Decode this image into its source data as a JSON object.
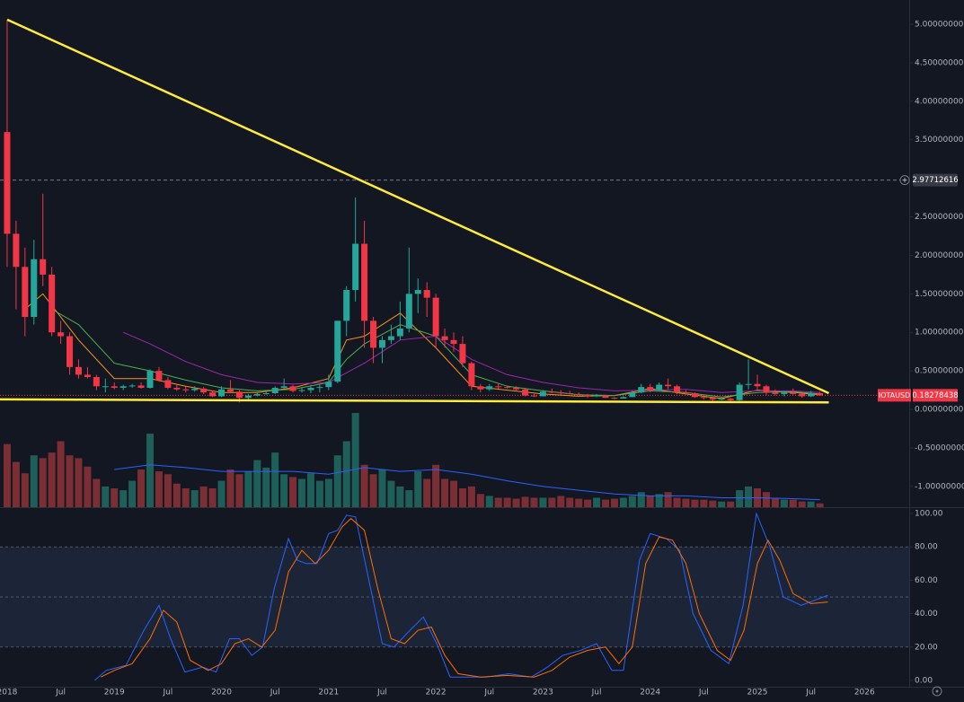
{
  "chart_data": [
    {
      "type": "candlestick",
      "xlim": [
        -0.8,
        101
      ],
      "ylim": [
        -1.27,
        5.315
      ],
      "xticks": [
        {
          "value": 0,
          "label": "2018"
        },
        {
          "value": 6,
          "label": "Jul"
        },
        {
          "value": 12,
          "label": "2019"
        },
        {
          "value": 18,
          "label": "Jul"
        },
        {
          "value": 24,
          "label": "2020"
        },
        {
          "value": 30,
          "label": "Jul"
        },
        {
          "value": 36,
          "label": "2021"
        },
        {
          "value": 42,
          "label": "Jul"
        },
        {
          "value": 48,
          "label": "2022"
        },
        {
          "value": 54,
          "label": "Jul"
        },
        {
          "value": 60,
          "label": "2023"
        },
        {
          "value": 66,
          "label": "Jul"
        },
        {
          "value": 72,
          "label": "2024"
        },
        {
          "value": 78,
          "label": "Jul"
        },
        {
          "value": 84,
          "label": "2025"
        },
        {
          "value": 90,
          "label": "Jul"
        },
        {
          "value": 96,
          "label": "2026"
        }
      ],
      "yticks": [
        {
          "value": 5,
          "label": "5.00000000"
        },
        {
          "value": 4.5,
          "label": "4.50000000"
        },
        {
          "value": 4,
          "label": "4.00000000"
        },
        {
          "value": 3.5,
          "label": "3.50000000"
        },
        {
          "value": 2.5,
          "label": "2.50000000"
        },
        {
          "value": 2,
          "label": "2.00000000"
        },
        {
          "value": 1.5,
          "label": "1.50000000"
        },
        {
          "value": 1,
          "label": "1.00000000"
        },
        {
          "value": 0.5,
          "label": "0.50000000"
        },
        {
          "value": 0,
          "label": "0.00000000"
        },
        {
          "value": -0.5,
          "label": "-0.50000000"
        },
        {
          "value": -1,
          "label": "-1.00000000"
        }
      ],
      "up_color": "#26a69a",
      "down_color": "#f23645",
      "ohlc": [
        [
          3.6,
          5.05,
          1.85,
          2.28
        ],
        [
          2.28,
          2.45,
          1.3,
          1.85
        ],
        [
          1.85,
          2.1,
          0.95,
          1.2
        ],
        [
          1.2,
          2.2,
          1.1,
          1.95
        ],
        [
          1.95,
          2.8,
          1.6,
          1.75
        ],
        [
          1.75,
          1.85,
          0.95,
          1.0
        ],
        [
          1.0,
          1.15,
          0.85,
          0.95
        ],
        [
          0.95,
          1.0,
          0.45,
          0.55
        ],
        [
          0.55,
          0.65,
          0.4,
          0.45
        ],
        [
          0.45,
          0.55,
          0.4,
          0.42
        ],
        [
          0.42,
          0.45,
          0.25,
          0.3
        ],
        [
          0.3,
          0.4,
          0.22,
          0.3
        ],
        [
          0.3,
          0.35,
          0.26,
          0.28
        ],
        [
          0.28,
          0.32,
          0.25,
          0.3
        ],
        [
          0.3,
          0.33,
          0.28,
          0.31
        ],
        [
          0.31,
          0.35,
          0.27,
          0.28
        ],
        [
          0.28,
          0.52,
          0.27,
          0.5
        ],
        [
          0.5,
          0.55,
          0.36,
          0.38
        ],
        [
          0.38,
          0.42,
          0.26,
          0.28
        ],
        [
          0.28,
          0.32,
          0.24,
          0.26
        ],
        [
          0.26,
          0.3,
          0.22,
          0.25
        ],
        [
          0.25,
          0.3,
          0.23,
          0.27
        ],
        [
          0.27,
          0.29,
          0.2,
          0.22
        ],
        [
          0.22,
          0.24,
          0.16,
          0.17
        ],
        [
          0.17,
          0.3,
          0.16,
          0.26
        ],
        [
          0.26,
          0.38,
          0.22,
          0.23
        ],
        [
          0.23,
          0.25,
          0.09,
          0.15
        ],
        [
          0.15,
          0.2,
          0.13,
          0.18
        ],
        [
          0.18,
          0.22,
          0.17,
          0.2
        ],
        [
          0.2,
          0.24,
          0.19,
          0.21
        ],
        [
          0.21,
          0.3,
          0.2,
          0.28
        ],
        [
          0.28,
          0.4,
          0.27,
          0.3
        ],
        [
          0.3,
          0.32,
          0.22,
          0.24
        ],
        [
          0.24,
          0.28,
          0.22,
          0.25
        ],
        [
          0.25,
          0.32,
          0.21,
          0.28
        ],
        [
          0.28,
          0.32,
          0.22,
          0.29
        ],
        [
          0.29,
          0.45,
          0.25,
          0.36
        ],
        [
          0.36,
          1.15,
          0.34,
          1.15
        ],
        [
          1.15,
          1.6,
          0.95,
          1.55
        ],
        [
          1.55,
          2.75,
          1.4,
          2.15
        ],
        [
          2.15,
          2.45,
          0.8,
          1.15
        ],
        [
          1.15,
          1.2,
          0.6,
          0.8
        ],
        [
          0.8,
          0.95,
          0.6,
          0.9
        ],
        [
          0.9,
          1.1,
          0.85,
          0.95
        ],
        [
          0.95,
          1.4,
          0.9,
          1.05
        ],
        [
          1.05,
          2.1,
          1.0,
          1.5
        ],
        [
          1.5,
          1.7,
          1.25,
          1.55
        ],
        [
          1.55,
          1.65,
          1.2,
          1.45
        ],
        [
          1.45,
          1.5,
          0.8,
          0.95
        ],
        [
          0.95,
          1.05,
          0.8,
          0.9
        ],
        [
          0.9,
          1.0,
          0.75,
          0.85
        ],
        [
          0.85,
          0.95,
          0.55,
          0.6
        ],
        [
          0.6,
          0.62,
          0.25,
          0.3
        ],
        [
          0.3,
          0.33,
          0.22,
          0.26
        ],
        [
          0.26,
          0.33,
          0.24,
          0.3
        ],
        [
          0.3,
          0.34,
          0.27,
          0.29
        ],
        [
          0.29,
          0.31,
          0.27,
          0.28
        ],
        [
          0.28,
          0.3,
          0.25,
          0.26
        ],
        [
          0.26,
          0.28,
          0.17,
          0.18
        ],
        [
          0.18,
          0.2,
          0.16,
          0.17
        ],
        [
          0.17,
          0.25,
          0.17,
          0.23
        ],
        [
          0.23,
          0.27,
          0.21,
          0.22
        ],
        [
          0.22,
          0.25,
          0.19,
          0.21
        ],
        [
          0.21,
          0.24,
          0.2,
          0.2
        ],
        [
          0.2,
          0.22,
          0.19,
          0.19
        ],
        [
          0.19,
          0.2,
          0.15,
          0.17
        ],
        [
          0.17,
          0.2,
          0.16,
          0.18
        ],
        [
          0.18,
          0.19,
          0.15,
          0.15
        ],
        [
          0.15,
          0.16,
          0.13,
          0.14
        ],
        [
          0.14,
          0.17,
          0.14,
          0.16
        ],
        [
          0.16,
          0.24,
          0.16,
          0.22
        ],
        [
          0.22,
          0.33,
          0.21,
          0.29
        ],
        [
          0.29,
          0.33,
          0.22,
          0.25
        ],
        [
          0.25,
          0.35,
          0.24,
          0.32
        ],
        [
          0.32,
          0.4,
          0.26,
          0.3
        ],
        [
          0.3,
          0.32,
          0.2,
          0.22
        ],
        [
          0.22,
          0.25,
          0.19,
          0.21
        ],
        [
          0.21,
          0.22,
          0.15,
          0.16
        ],
        [
          0.16,
          0.19,
          0.13,
          0.15
        ],
        [
          0.15,
          0.16,
          0.11,
          0.13
        ],
        [
          0.13,
          0.15,
          0.12,
          0.14
        ],
        [
          0.14,
          0.15,
          0.11,
          0.12
        ],
        [
          0.12,
          0.35,
          0.11,
          0.32
        ],
        [
          0.32,
          0.65,
          0.26,
          0.33
        ],
        [
          0.33,
          0.45,
          0.26,
          0.3
        ],
        [
          0.3,
          0.32,
          0.18,
          0.22
        ],
        [
          0.22,
          0.26,
          0.18,
          0.2
        ],
        [
          0.2,
          0.24,
          0.17,
          0.22
        ],
        [
          0.22,
          0.27,
          0.19,
          0.2
        ],
        [
          0.2,
          0.21,
          0.15,
          0.17
        ],
        [
          0.17,
          0.24,
          0.16,
          0.21
        ],
        [
          0.21,
          0.23,
          0.18,
          0.18
        ]
      ],
      "moving_averages": [
        {
          "color": "#f7931a",
          "x": [
            2,
            4,
            8,
            12,
            16,
            20,
            24,
            28,
            32,
            36,
            38,
            40,
            44,
            48,
            52,
            56,
            60,
            64,
            68,
            72,
            76,
            80,
            84,
            88,
            91
          ],
          "values": [
            1.3,
            1.5,
            0.9,
            0.4,
            0.4,
            0.3,
            0.22,
            0.22,
            0.28,
            0.4,
            0.9,
            0.95,
            1.25,
            0.8,
            0.3,
            0.25,
            0.2,
            0.17,
            0.18,
            0.27,
            0.2,
            0.14,
            0.25,
            0.22,
            0.19
          ]
        },
        {
          "color": "#4caf50",
          "x": [
            5,
            8,
            12,
            16,
            20,
            24,
            28,
            32,
            36,
            38,
            40,
            44,
            48,
            52,
            56,
            60,
            64,
            68,
            72,
            76,
            80,
            84,
            88,
            91
          ],
          "values": [
            1.3,
            1.1,
            0.6,
            0.5,
            0.38,
            0.28,
            0.24,
            0.26,
            0.35,
            0.65,
            0.85,
            1.1,
            0.95,
            0.45,
            0.3,
            0.24,
            0.19,
            0.18,
            0.24,
            0.22,
            0.16,
            0.22,
            0.23,
            0.2
          ]
        },
        {
          "color": "#9c27b0",
          "x": [
            13,
            16,
            20,
            24,
            28,
            32,
            36,
            40,
            44,
            48,
            52,
            56,
            60,
            64,
            68,
            72,
            76,
            80,
            84,
            88,
            91
          ],
          "values": [
            1.0,
            0.85,
            0.62,
            0.45,
            0.35,
            0.33,
            0.35,
            0.6,
            0.9,
            0.95,
            0.65,
            0.45,
            0.35,
            0.28,
            0.24,
            0.25,
            0.26,
            0.22,
            0.24,
            0.24,
            0.22
          ]
        }
      ],
      "volume": {
        "up_color": "#1f5f5a",
        "down_color": "#7b2f35",
        "values": [
          67,
          48,
          36,
          55,
          52,
          58,
          70,
          55,
          52,
          43,
          30,
          22,
          20,
          18,
          28,
          40,
          78,
          38,
          35,
          25,
          20,
          18,
          22,
          20,
          28,
          40,
          35,
          38,
          50,
          42,
          58,
          35,
          32,
          30,
          36,
          28,
          30,
          55,
          70,
          100,
          45,
          35,
          40,
          28,
          22,
          18,
          38,
          30,
          45,
          30,
          28,
          20,
          22,
          14,
          12,
          10,
          10,
          9,
          11,
          10,
          10,
          10,
          12,
          10,
          9,
          8,
          10,
          8,
          9,
          10,
          12,
          16,
          12,
          14,
          16,
          10,
          9,
          8,
          8,
          7,
          6,
          6,
          18,
          22,
          20,
          16,
          10,
          8,
          8,
          6,
          6,
          4
        ],
        "average": {
          "color": "#2962ff",
          "x": [
            12,
            16,
            20,
            24,
            28,
            32,
            36,
            40,
            44,
            48,
            52,
            56,
            60,
            64,
            68,
            72,
            76,
            80,
            84,
            88,
            91
          ],
          "values": [
            40,
            45,
            42,
            38,
            38,
            38,
            35,
            42,
            38,
            40,
            35,
            28,
            22,
            18,
            14,
            12,
            12,
            10,
            10,
            9,
            8
          ]
        }
      },
      "trendlines": [
        {
          "color": "#ffeb3b",
          "x": [
            0,
            92
          ],
          "values": [
            5.06,
            0.21
          ]
        },
        {
          "color": "#ffeb3b",
          "x": [
            -0.8,
            92
          ],
          "values": [
            0.13,
            0.09
          ]
        }
      ],
      "markers": [
        {
          "value": 2.97712616,
          "color": "#787b86"
        },
        {
          "symbol": "IOTAUSD",
          "value": 0.18278438,
          "color": "#f23645"
        }
      ]
    },
    {
      "type": "line",
      "xlim": [
        -0.8,
        101
      ],
      "ylim": [
        -3.8,
        103.8
      ],
      "yticks": [
        {
          "value": 100,
          "label": "100.00"
        },
        {
          "value": 80,
          "label": "80.00"
        },
        {
          "value": 60,
          "label": "60.00"
        },
        {
          "value": 40,
          "label": "40.00"
        },
        {
          "value": 20,
          "label": "20.00"
        },
        {
          "value": 0,
          "label": "0.00"
        }
      ],
      "band": [
        20,
        80
      ],
      "band_color": "#1c2537",
      "levels": [
        80,
        50,
        20
      ],
      "series": [
        {
          "color": "#2962ff",
          "x": [
            9.8,
            11.1,
            13.3,
            15.3,
            17,
            18.3,
            19.9,
            21.9,
            23.4,
            24.9,
            26,
            27.4,
            28.6,
            29.9,
            31.5,
            32.5,
            33.5,
            34.7,
            36,
            37,
            38,
            39,
            40.5,
            42,
            43.3,
            45.1,
            46.6,
            48.1,
            49.6,
            51.6,
            53.6,
            56.2,
            58.7,
            60.5,
            62.2,
            64.2,
            66,
            67.7,
            69,
            70.8,
            72,
            73.8,
            75.3,
            76.8,
            78.8,
            80.8,
            82.4,
            83.9,
            85.4,
            86.9,
            88.9,
            91.9
          ],
          "values": [
            0,
            6,
            9,
            30,
            45,
            25,
            5,
            8,
            5,
            25,
            25,
            15,
            20,
            55,
            85,
            72,
            70,
            70,
            88,
            90,
            99,
            98,
            60,
            22,
            20,
            30,
            38,
            22,
            2,
            2,
            2,
            4,
            2,
            8,
            15,
            18,
            22,
            6,
            6,
            72,
            88,
            85,
            78,
            40,
            18,
            10,
            45,
            100,
            80,
            50,
            45,
            51
          ]
        },
        {
          "color": "#ff6d00",
          "x": [
            10.5,
            12,
            14,
            16,
            17.5,
            19,
            20.5,
            22.5,
            24,
            25.5,
            27,
            28.5,
            30,
            31.5,
            33,
            34.5,
            36,
            37.5,
            38.5,
            40,
            41.5,
            43,
            44.5,
            46,
            47.5,
            49,
            50.5,
            53,
            56,
            59,
            61,
            63,
            65,
            67,
            68.5,
            70,
            71.5,
            73,
            74.5,
            76,
            77.5,
            79.5,
            81,
            82.5,
            84,
            85.2,
            86.5,
            88,
            90,
            91.9
          ],
          "values": [
            2,
            6,
            10,
            25,
            42,
            35,
            12,
            6,
            10,
            22,
            25,
            20,
            30,
            65,
            78,
            70,
            78,
            92,
            97,
            90,
            55,
            25,
            22,
            30,
            32,
            15,
            4,
            2,
            3,
            2,
            6,
            14,
            18,
            20,
            10,
            20,
            70,
            86,
            84,
            70,
            40,
            18,
            12,
            30,
            70,
            84,
            72,
            52,
            46,
            47
          ]
        }
      ]
    }
  ]
}
